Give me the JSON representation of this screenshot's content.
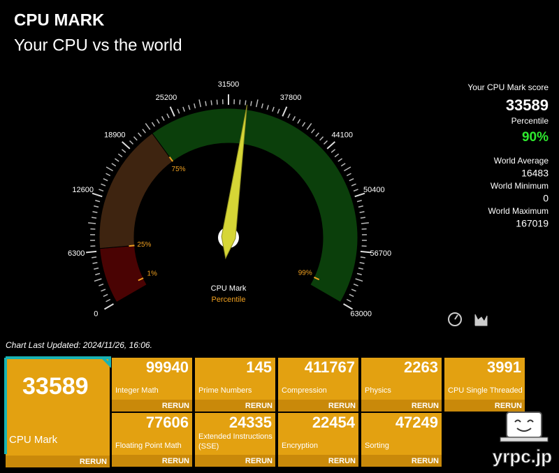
{
  "header": {
    "title": "CPU MARK",
    "subtitle": "Your CPU vs the world"
  },
  "gauge": {
    "range": [
      0,
      63000
    ],
    "ticks": [
      0,
      6300,
      12600,
      18900,
      25200,
      31500,
      37800,
      44100,
      50400,
      56700,
      63000
    ],
    "percentile_marks": [
      {
        "value": 1200,
        "label": "1%"
      },
      {
        "value": 6600,
        "label": "25%"
      },
      {
        "value": 22000,
        "label": "75%"
      },
      {
        "value": 61660,
        "label": "99%"
      }
    ],
    "center_label": "CPU Mark",
    "center_sublabel": "Percentile"
  },
  "stats": {
    "score_label": "Your CPU Mark score",
    "score": 33589,
    "percentile_label": "Percentile",
    "percentile": "90%",
    "average_label": "World Average",
    "average": 16483,
    "minimum_label": "World Minimum",
    "minimum": 0,
    "maximum_label": "World Maximum",
    "maximum": 167019
  },
  "updated": "Chart Last Updated: 2024/11/26, 16:06.",
  "main_tile": {
    "value": 33589,
    "label": "CPU Mark",
    "action": "RERUN"
  },
  "tiles": [
    {
      "value": 99940,
      "label": "Integer Math",
      "action": "RERUN"
    },
    {
      "value": 145,
      "label": "Prime Numbers",
      "action": "RERUN"
    },
    {
      "value": 411767,
      "label": "Compression",
      "action": "RERUN"
    },
    {
      "value": 2263,
      "label": "Physics",
      "action": "RERUN"
    },
    {
      "value": 3991,
      "label": "CPU Single Threaded",
      "action": "RERUN"
    },
    {
      "value": 77606,
      "label": "Floating Point Math",
      "action": "RERUN"
    },
    {
      "value": 24335,
      "label": "Extended Instructions (SSE)",
      "action": "RERUN"
    },
    {
      "value": 22454,
      "label": "Encryption",
      "action": "RERUN"
    },
    {
      "value": 47249,
      "label": "Sorting",
      "action": "RERUN"
    }
  ],
  "watermark": "yrpc.jp"
}
